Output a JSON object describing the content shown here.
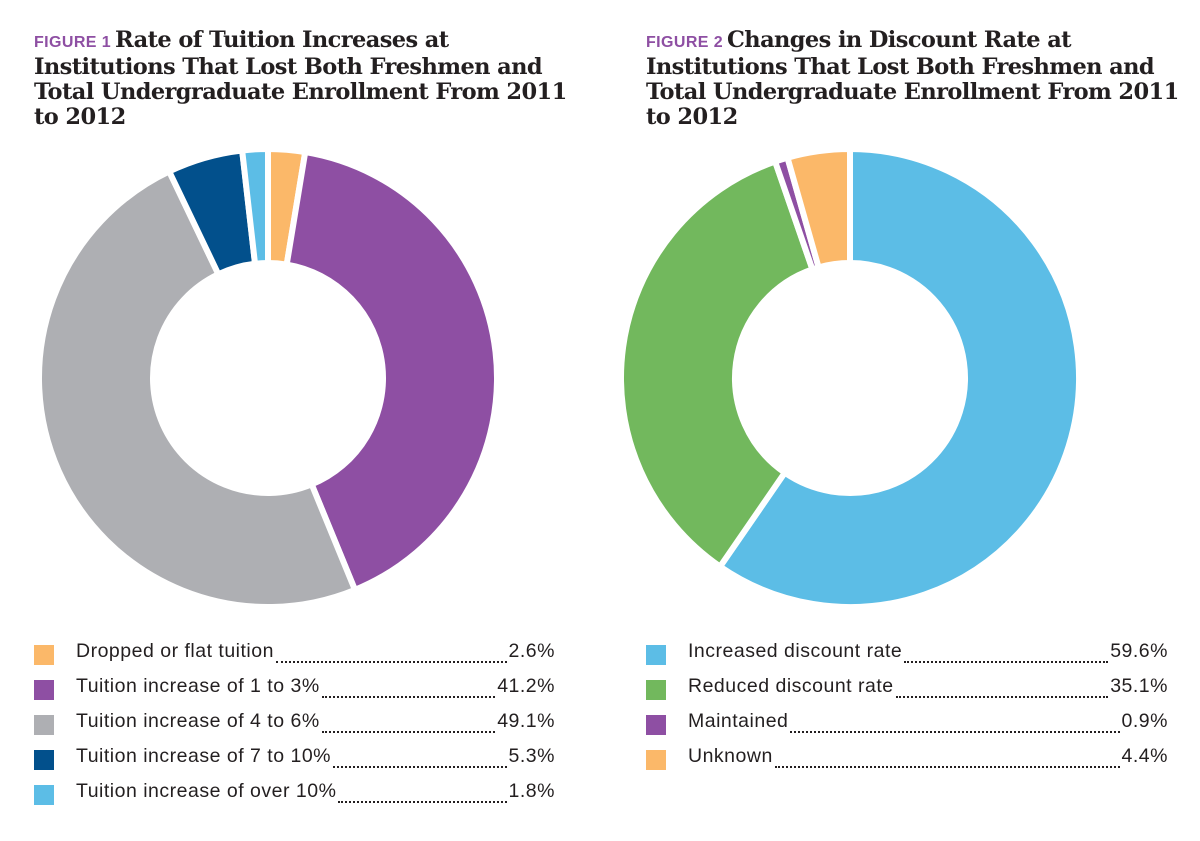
{
  "chart_data": [
    {
      "type": "pie",
      "figure_label": "FIGURE 1",
      "title": "Rate of Tuition Increases at Institutions That Lost Both Freshmen and Total Undergraduate Enrollment From 2011 to 2012",
      "legend_placement": "bottom",
      "slices": [
        {
          "label": "Dropped or flat tuition",
          "value": 2.6,
          "value_label": "2.6%",
          "color": "#fbb869"
        },
        {
          "label": "Tuition increase of 1 to 3%",
          "value": 41.2,
          "value_label": "41.2%",
          "color": "#8e4fa3"
        },
        {
          "label": "Tuition increase of 4 to 6%",
          "value": 49.1,
          "value_label": "49.1%",
          "color": "#aeafb3"
        },
        {
          "label": "Tuition increase of 7 to 10%",
          "value": 5.3,
          "value_label": "5.3%",
          "color": "#02508c"
        },
        {
          "label": "Tuition increase of over 10%",
          "value": 1.8,
          "value_label": "1.8%",
          "color": "#5cbde6"
        }
      ]
    },
    {
      "type": "pie",
      "figure_label": "FIGURE 2",
      "title": "Changes in Discount Rate at Institutions That Lost Both Freshmen and Total Undergraduate Enrollment From 2011 to 2012",
      "legend_placement": "bottom",
      "slices": [
        {
          "label": "Increased discount rate",
          "value": 59.6,
          "value_label": "59.6%",
          "color": "#5cbde6"
        },
        {
          "label": "Reduced discount rate",
          "value": 35.1,
          "value_label": "35.1%",
          "color": "#72b85d"
        },
        {
          "label": "Maintained",
          "value": 0.9,
          "value_label": "0.9%",
          "color": "#8e4fa3"
        },
        {
          "label": "Unknown",
          "value": 4.4,
          "value_label": "4.4%",
          "color": "#fbb869"
        }
      ]
    }
  ]
}
